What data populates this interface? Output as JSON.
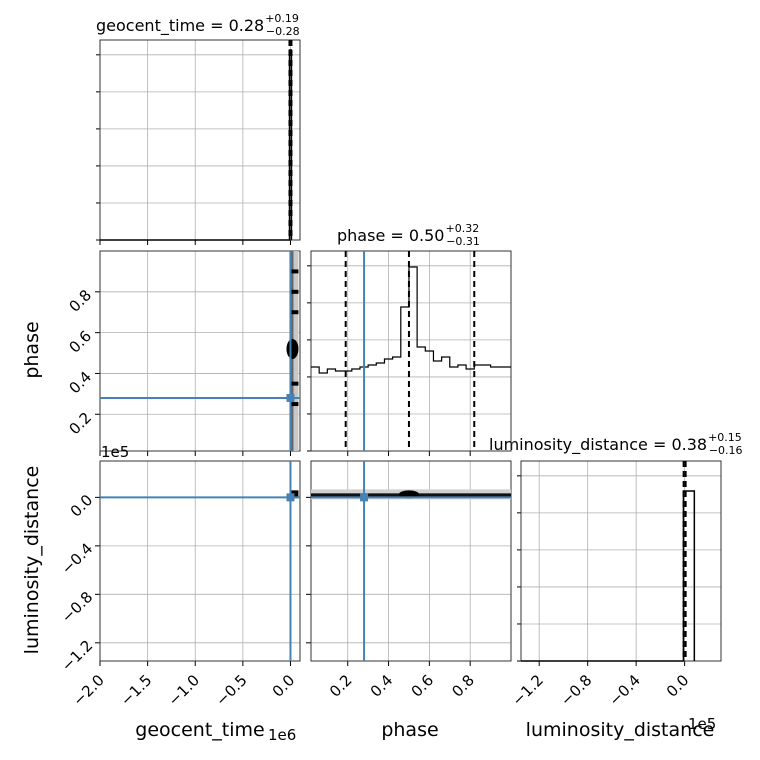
{
  "chart_data": {
    "type": "corner",
    "parameters": [
      "geocent_time",
      "phase",
      "luminosity_distance"
    ],
    "truths": {
      "geocent_time": 0,
      "phase": 0.28,
      "luminosity_distance": 0
    },
    "titles": [
      {
        "param": "geocent_time",
        "median": "0.28",
        "plus": "+0.19",
        "minus": "−0.28"
      },
      {
        "param": "phase",
        "median": "0.50",
        "plus": "+0.32",
        "minus": "−0.31"
      },
      {
        "param": "luminosity_distance",
        "median": "0.38",
        "plus": "+0.15",
        "minus": "−0.16"
      }
    ],
    "axes": {
      "geocent_time": {
        "range": [
          -2.0,
          0.1
        ],
        "scale_label": "1e6",
        "ticks": [
          -2.0,
          -1.5,
          -1.0,
          -0.5,
          0.0
        ],
        "tick_labels": [
          "−2.0",
          "−1.5",
          "−1.0",
          "−0.5",
          "0.0"
        ]
      },
      "phase": {
        "range": [
          0.02,
          1.0
        ],
        "ticks": [
          0.2,
          0.4,
          0.6,
          0.8
        ],
        "tick_labels": [
          "0.2",
          "0.4",
          "0.6",
          "0.8"
        ]
      },
      "luminosity_distance": {
        "range": [
          -1.35,
          0.3
        ],
        "scale_label": "1e5",
        "ticks": [
          -1.2,
          -0.8,
          -0.4,
          0.0
        ],
        "tick_labels": [
          "−1.2",
          "−0.8",
          "−0.4",
          "0.0"
        ]
      }
    },
    "quantiles": {
      "geocent_time": [
        0.0,
        0.28,
        0.47
      ],
      "phase": [
        0.19,
        0.5,
        0.82
      ],
      "luminosity_distance": [
        0.22,
        0.38,
        0.53
      ]
    },
    "hist_phase": {
      "bin_edges": [
        0.02,
        0.06,
        0.1,
        0.14,
        0.18,
        0.22,
        0.26,
        0.3,
        0.34,
        0.38,
        0.42,
        0.46,
        0.5,
        0.54,
        0.58,
        0.62,
        0.66,
        0.7,
        0.74,
        0.78,
        0.82,
        0.86,
        0.9,
        0.94,
        0.98,
        1.0
      ],
      "counts": [
        0.42,
        0.39,
        0.41,
        0.4,
        0.4,
        0.41,
        0.42,
        0.43,
        0.44,
        0.46,
        0.47,
        0.72,
        0.92,
        0.52,
        0.5,
        0.45,
        0.47,
        0.42,
        0.43,
        0.41,
        0.43,
        0.43,
        0.42,
        0.42,
        0.42
      ]
    },
    "hist_geocent_time": {
      "spike_at": 0.0,
      "bin_width": 0.02,
      "height_fraction": 0.95
    },
    "hist_luminosity_distance": {
      "spike_at": 0.0,
      "bin_width": 0.08,
      "height_fraction": 0.85
    },
    "xlabels": [
      "geocent_time",
      "phase",
      "luminosity_distance"
    ],
    "ylabels": [
      "phase",
      "luminosity_distance"
    ],
    "colors": {
      "truth": "#4682b4",
      "hist": "#000000",
      "density_light": "#c8c8c8",
      "density_dark": "#000000"
    }
  }
}
